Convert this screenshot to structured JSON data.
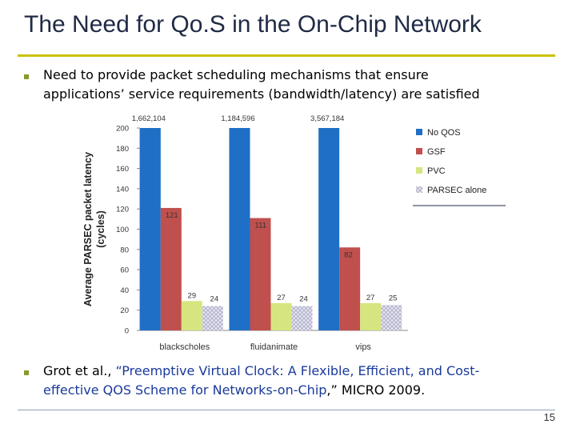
{
  "slide": {
    "title": "The Need for Qo.S in the On-Chip Network",
    "bullet1_line1": "Need to provide packet scheduling mechanisms that ensure",
    "bullet1_line2": "applications’ service requirements (bandwidth/latency) are satisfied",
    "ref_prefix": "Grot et al., ",
    "ref_link_line1": "“Preemptive Virtual Clock: A Flexible, Efficient, and Cost-",
    "ref_link_line2": "effective QOS Scheme for Networks-on-Chip",
    "ref_suffix": ",” MICRO 2009.",
    "page_number": "15"
  },
  "chart_data": {
    "type": "bar",
    "title": "",
    "xlabel": "",
    "ylabel": "Average PARSEC packet latency (cycles)",
    "ylabel_line1": "Average PARSEC packet latency",
    "ylabel_line2": "(cycles)",
    "ylim": [
      0,
      200
    ],
    "yticks": [
      0,
      20,
      40,
      60,
      80,
      100,
      120,
      140,
      160,
      180,
      200
    ],
    "grid": false,
    "legend_position": "right",
    "categories": [
      "blackscholes",
      "fluidanimate",
      "vips"
    ],
    "series": [
      {
        "name": "No QOS",
        "color": "#1f6fc6",
        "values": [
          1662104,
          1184596,
          3567184
        ],
        "labels": [
          "1,662,104",
          "1,184,596",
          "3,567,184"
        ]
      },
      {
        "name": "GSF",
        "color": "#c0504d",
        "values": [
          121,
          111,
          82
        ],
        "labels": [
          "121",
          "111",
          "82"
        ]
      },
      {
        "name": "PVC",
        "color": "#d7e580",
        "values": [
          29,
          27,
          27
        ],
        "labels": [
          "29",
          "27",
          "27"
        ]
      },
      {
        "name": "PARSEC alone",
        "color": "#dcdcf0",
        "values": [
          24,
          24,
          25
        ],
        "labels": [
          "24",
          "24",
          "25"
        ]
      }
    ]
  }
}
